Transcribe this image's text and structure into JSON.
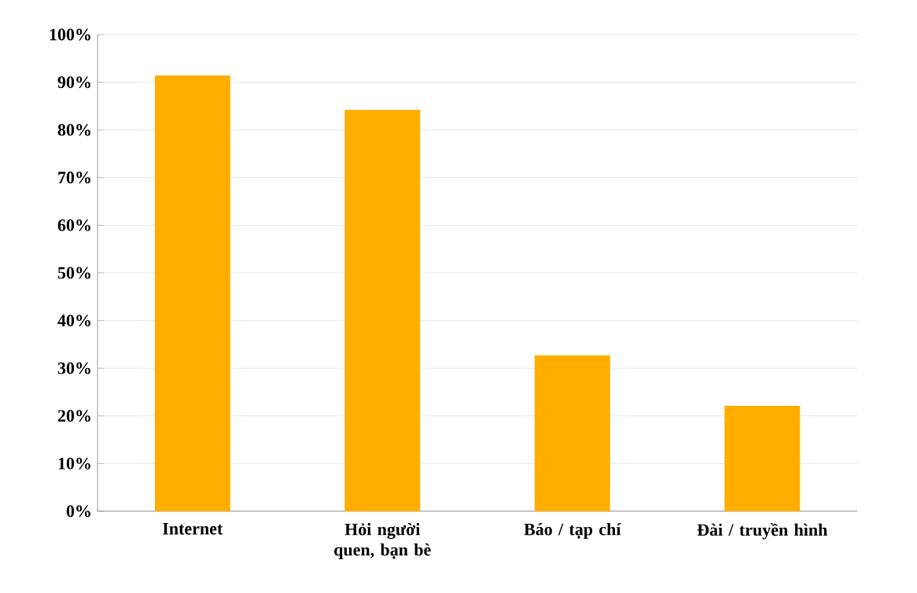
{
  "chart_data": {
    "type": "bar",
    "categories": [
      "Internet",
      "Hỏi người quen, bạn bè",
      "Báo / tạp chí",
      "Đài / truyền hình"
    ],
    "values": [
      91.4,
      84.2,
      32.7,
      22.1
    ],
    "color": "#ffae00",
    "ylim": [
      0,
      100
    ],
    "yticks": [
      {
        "value": 0,
        "label": "0%"
      },
      {
        "value": 10,
        "label": "10%"
      },
      {
        "value": 20,
        "label": "20%"
      },
      {
        "value": 30,
        "label": "30%"
      },
      {
        "value": 40,
        "label": "40%"
      },
      {
        "value": 50,
        "label": "50%"
      },
      {
        "value": 60,
        "label": "60%"
      },
      {
        "value": 70,
        "label": "70%"
      },
      {
        "value": 80,
        "label": "80%"
      },
      {
        "value": 90,
        "label": "90%"
      },
      {
        "value": 100,
        "label": "100%"
      }
    ],
    "grid": "y"
  }
}
